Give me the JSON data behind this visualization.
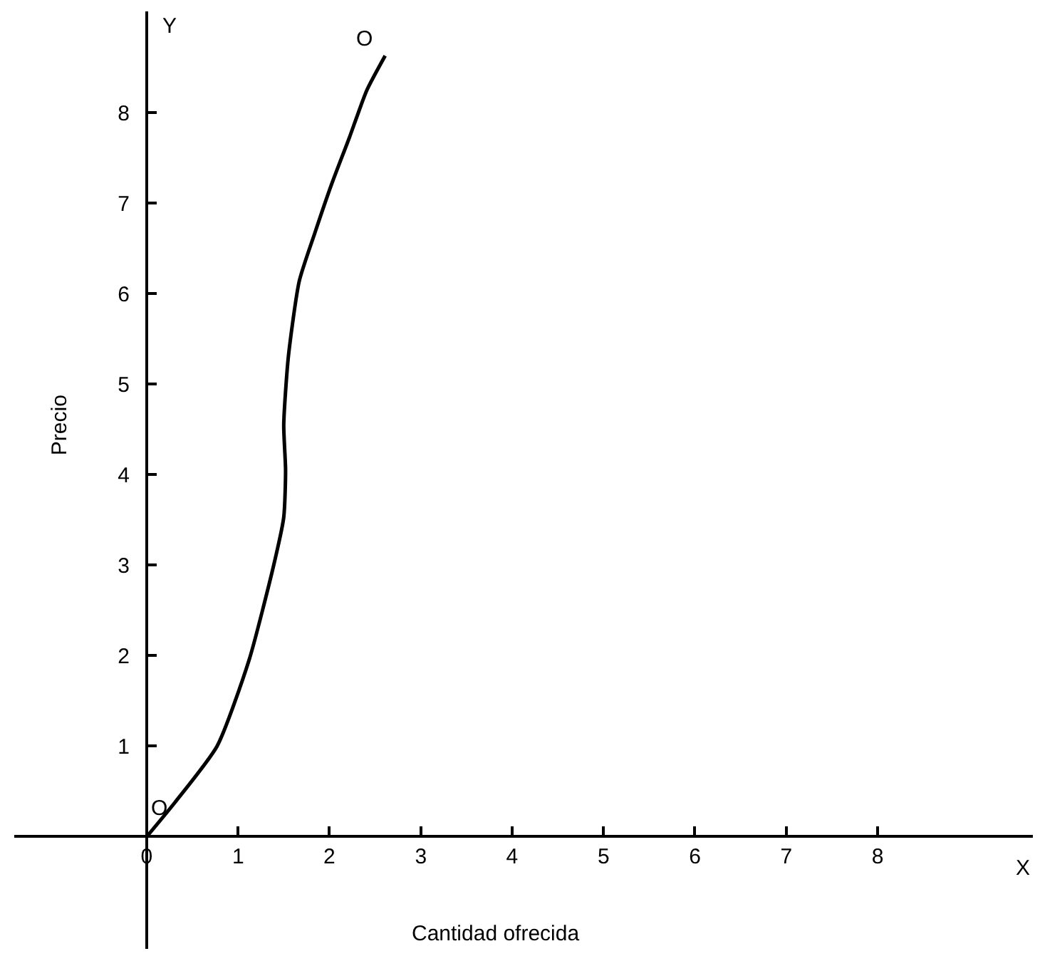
{
  "chart_data": {
    "type": "line",
    "xlabel": "Cantidad ofrecida",
    "ylabel": "Precio",
    "x": [
      0,
      0.31,
      0.77,
      1.12,
      1.39,
      1.5,
      1.52,
      1.5,
      1.55,
      1.67,
      1.84,
      2.02,
      2.22,
      2.41,
      2.61
    ],
    "series": [
      {
        "color": "#000000",
        "values": [
          0,
          0.38,
          1.0,
          1.95,
          3.0,
          3.53,
          4.05,
          4.55,
          5.3,
          6.14,
          6.67,
          7.2,
          7.73,
          8.25,
          8.63
        ]
      }
    ],
    "xlim": [
      -1.45,
      9.7
    ],
    "ylim": [
      -1.24,
      9.12
    ],
    "xticks": [
      0,
      1,
      2,
      3,
      4,
      5,
      6,
      7,
      8
    ],
    "yticks": [
      1,
      2,
      3,
      4,
      5,
      6,
      7,
      8
    ],
    "annotations": [
      "Y",
      "X",
      "O",
      "O"
    ],
    "marker": "none",
    "line_style": "solid"
  }
}
